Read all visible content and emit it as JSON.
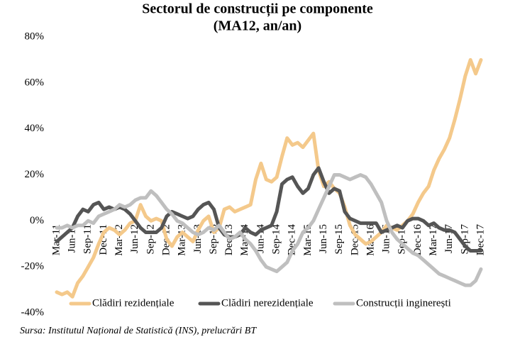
{
  "chart_data": {
    "type": "line",
    "title": "Sectorul de construcții pe componente",
    "subtitle": "(MA12, an/an)",
    "source": "Sursa: Institutul Național de Statistică (INS), prelucrări BT",
    "categories": [
      "Mar-11",
      null,
      null,
      "Jun-11",
      null,
      null,
      "Sep-11",
      null,
      null,
      "Dec-11",
      null,
      null,
      "Mar-12",
      null,
      null,
      "Jun-12",
      null,
      null,
      "Sep-12",
      null,
      null,
      "Dec-12",
      null,
      null,
      "Mar-13",
      null,
      null,
      "Jun-13",
      null,
      null,
      "Sep-13",
      null,
      null,
      "Dec-13",
      null,
      null,
      "Mar-14",
      null,
      null,
      "Jun-14",
      null,
      null,
      "Sep-14",
      null,
      null,
      "Dec-14",
      null,
      null,
      "Mar-15",
      null,
      null,
      "Jun-15",
      null,
      null,
      "Sep-15",
      null,
      null,
      "Dec-15",
      null,
      null,
      "Mar-16",
      null,
      null,
      "Jun-16",
      null,
      null,
      "Sep-16",
      null,
      null,
      "Dec-16",
      null,
      null,
      "Mar-17",
      null,
      null,
      "Jun-17",
      null,
      null,
      "Sep-17",
      null,
      null,
      "Dec-17"
    ],
    "series": [
      {
        "name": "Clădiri rezidențiale",
        "color": "#f4c98b",
        "values": [
          -31,
          -32,
          -31,
          -33,
          -27,
          -24,
          -20,
          -16,
          -10,
          -5,
          -3,
          -4,
          -6,
          -4,
          -1,
          0,
          7,
          2,
          0,
          1,
          0,
          -8,
          -11,
          -7,
          -5,
          -7,
          -9,
          -4,
          0,
          2,
          -5,
          -3,
          5,
          6,
          4,
          5,
          6,
          7,
          18,
          25,
          18,
          17,
          19,
          28,
          36,
          33,
          34,
          32,
          35,
          38,
          22,
          15,
          17,
          14,
          12,
          6,
          -2,
          -6,
          -8,
          -10,
          -9,
          -7,
          -5,
          -2,
          -3,
          -4,
          -2,
          0,
          3,
          8,
          12,
          15,
          22,
          27,
          31,
          36,
          44,
          53,
          63,
          70,
          64,
          70
        ]
      },
      {
        "name": "Clădiri nerezidențiale",
        "color": "#555555",
        "values": [
          -9,
          -7,
          -5,
          -3,
          2,
          5,
          4,
          7,
          8,
          5,
          6,
          5,
          6,
          5,
          3,
          0,
          -3,
          -5,
          -5,
          -5,
          -3,
          2,
          4,
          3,
          2,
          1,
          2,
          5,
          7,
          8,
          5,
          -3,
          -6,
          -7,
          -7,
          -6,
          -3,
          -5,
          -6,
          -4,
          -3,
          -2,
          4,
          16,
          18,
          19,
          15,
          12,
          14,
          20,
          23,
          17,
          12,
          14,
          13,
          4,
          1,
          0,
          -1,
          -1,
          -1,
          -1,
          -5,
          -4,
          -3,
          -2,
          -3,
          0,
          1,
          1,
          0,
          -2,
          -1,
          -3,
          -4,
          -4,
          -5,
          -8,
          -11,
          -13,
          -13,
          -13
        ]
      },
      {
        "name": "Construcții inginerești",
        "color": "#bfbfbf",
        "values": [
          -3,
          -3,
          -2,
          -3,
          -2,
          -2,
          0,
          -1,
          2,
          3,
          4,
          5,
          7,
          6,
          7,
          9,
          10,
          10,
          13,
          11,
          8,
          5,
          3,
          0,
          -1,
          -3,
          -5,
          -6,
          -5,
          -3,
          -4,
          -2,
          -5,
          -8,
          -7,
          -5,
          -8,
          -10,
          -13,
          -17,
          -20,
          -21,
          -22,
          -20,
          -18,
          -13,
          -10,
          -5,
          -3,
          0,
          5,
          10,
          15,
          20,
          20,
          19,
          18,
          19,
          20,
          19,
          16,
          12,
          8,
          0,
          -5,
          -8,
          -10,
          -12,
          -14,
          -15,
          -17,
          -19,
          -21,
          -23,
          -24,
          -25,
          -26,
          -27,
          -28,
          -28,
          -26,
          -21
        ]
      }
    ],
    "ylim": [
      -40,
      80
    ],
    "yticks": [
      {
        "value": -40,
        "label": "-40%"
      },
      {
        "value": -20,
        "label": "-20%"
      },
      {
        "value": 0,
        "label": "0%"
      },
      {
        "value": 20,
        "label": "20%"
      },
      {
        "value": 40,
        "label": "40%"
      },
      {
        "value": 60,
        "label": "60%"
      },
      {
        "value": 80,
        "label": "80%"
      }
    ],
    "grid": false
  }
}
